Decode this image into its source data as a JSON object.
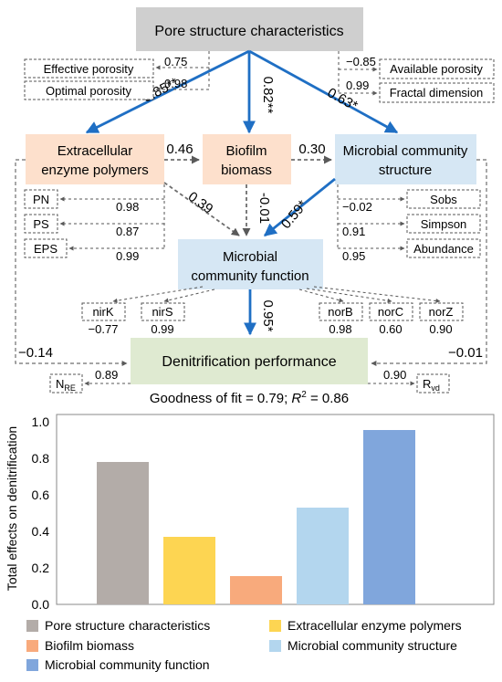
{
  "nodes": {
    "pore": "Pore structure characteristics",
    "epoly_line1": "Extracellular",
    "epoly_line2": "enzyme polymers",
    "biofilm_line1": "Biofilm",
    "biofilm_line2": "biomass",
    "mcs_line1": "Microbial community",
    "mcs_line2": "structure",
    "mcf_line1": "Microbial",
    "mcf_line2": "community function",
    "denit": "Denitrification performance"
  },
  "indicators": {
    "effective_porosity": "Effective porosity",
    "optimal_porosity": "Optimal porosity",
    "available_porosity": "Available porosity",
    "fractal_dimension": "Fractal dimension",
    "pn": "PN",
    "ps": "PS",
    "eps": "EPS",
    "sobs": "Sobs",
    "simpson": "Simpson",
    "abundance": "Abundance",
    "nirk": "nirK",
    "nirs": "nirS",
    "norb": "norB",
    "norc": "norC",
    "norz": "norZ",
    "nre_main": "N",
    "nre_sub": "RE",
    "rvd_main": "R",
    "rvd_sub": "vd"
  },
  "loadings": {
    "effective_porosity": "0.75",
    "optimal_porosity": "0.98",
    "available_porosity": "−0.85",
    "fractal_dimension": "0.99",
    "pn": "0.98",
    "ps": "0.87",
    "eps": "0.99",
    "sobs": "−0.02",
    "simpson": "0.91",
    "abundance": "0.95",
    "nirk": "−0.77",
    "nirs": "0.99",
    "norb": "0.98",
    "norc": "0.60",
    "norz": "0.90",
    "nre": "0.89",
    "rvd": "0.90"
  },
  "paths": {
    "pore_epoly": "0.85**",
    "pore_biofilm": "0.82**",
    "pore_mcs": "0.63*",
    "epoly_biofilm": "0.46",
    "biofilm_mcs": "0.30",
    "epoly_mcf": "0.39",
    "biofilm_mcf": "-0.01",
    "mcs_mcf": "0.59*",
    "mcf_denit": "0.95*",
    "epoly_denit": "−0.14",
    "mcs_denit": "−0.01"
  },
  "fit": {
    "text_prefix": "Goodness of fit = 0.79; ",
    "r_letter": "R",
    "r_power": "2",
    "text_suffix": " = 0.86"
  },
  "colors": {
    "pore": "#cfcfcf",
    "orange_node": "#fde0cc",
    "blue_node": "#d6e7f4",
    "green_node": "#dfead1",
    "significant_arrow": "#1f6fc4",
    "nonsignificant_arrow": "#6e6e6e"
  },
  "chart_data": {
    "type": "bar",
    "ylabel": "Total effects on denitrification",
    "xlabel": "",
    "ylim": [
      0,
      1.0
    ],
    "yticks": [
      "0.0",
      "0.2",
      "0.4",
      "0.6",
      "0.8",
      "1.0"
    ],
    "grid": false,
    "legend_position": "bottom",
    "categories": [
      "Pore structure characteristics",
      "Extracellular enzyme polymers",
      "Biofilm biomass",
      "Microbial community structure",
      "Microbial community function"
    ],
    "values": [
      0.78,
      0.37,
      0.155,
      0.53,
      0.955
    ],
    "colors": [
      "#b3aca8",
      "#fdd552",
      "#f8aa7c",
      "#b3d6ee",
      "#80a6dc"
    ]
  }
}
